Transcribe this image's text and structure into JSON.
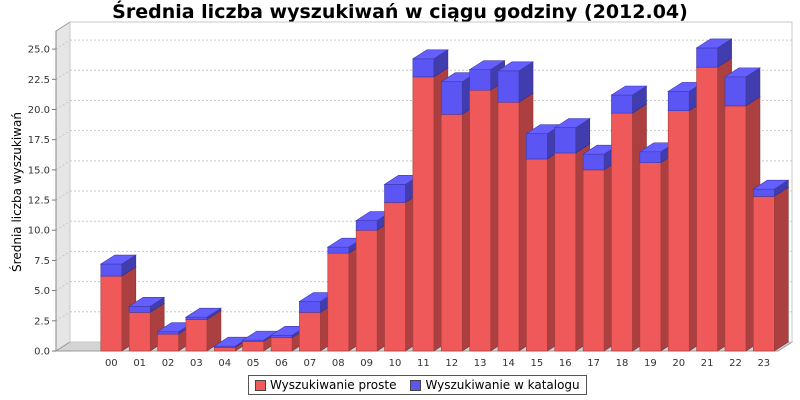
{
  "chart_data": {
    "type": "bar",
    "stacked": true,
    "style": "3d",
    "title": "Średnia liczba wyszukiwań w ciągu godziny (2012.04)",
    "xlabel": "",
    "ylabel": "Średnia liczba wyszukiwań",
    "ylim": [
      0,
      26.5
    ],
    "y_ticks": [
      "0.0",
      "2.5",
      "5.0",
      "7.5",
      "10.0",
      "12.5",
      "15.0",
      "17.5",
      "20.0",
      "22.5",
      "25.0"
    ],
    "categories": [
      "00",
      "01",
      "02",
      "03",
      "04",
      "05",
      "06",
      "07",
      "08",
      "09",
      "10",
      "11",
      "12",
      "13",
      "14",
      "15",
      "16",
      "17",
      "18",
      "19",
      "20",
      "21",
      "22",
      "23"
    ],
    "series": [
      {
        "name": "Wyszukiwanie proste",
        "color": "#ef5959",
        "values": [
          6.2,
          3.2,
          1.4,
          2.6,
          0.3,
          0.8,
          1.1,
          3.2,
          8.1,
          10.0,
          12.3,
          22.7,
          19.6,
          21.6,
          20.6,
          15.9,
          16.4,
          15.0,
          19.7,
          15.6,
          19.9,
          23.5,
          20.3,
          12.8
        ]
      },
      {
        "name": "Wyszukiwanie w katalogu",
        "color": "#5a55f3",
        "values": [
          1.0,
          0.5,
          0.2,
          0.2,
          0.1,
          0.1,
          0.2,
          0.9,
          0.5,
          0.8,
          1.5,
          1.5,
          2.7,
          1.7,
          2.6,
          2.1,
          2.1,
          1.3,
          1.5,
          0.9,
          1.6,
          1.6,
          2.4,
          0.6
        ]
      }
    ],
    "grid": true,
    "legend_position": "bottom"
  }
}
